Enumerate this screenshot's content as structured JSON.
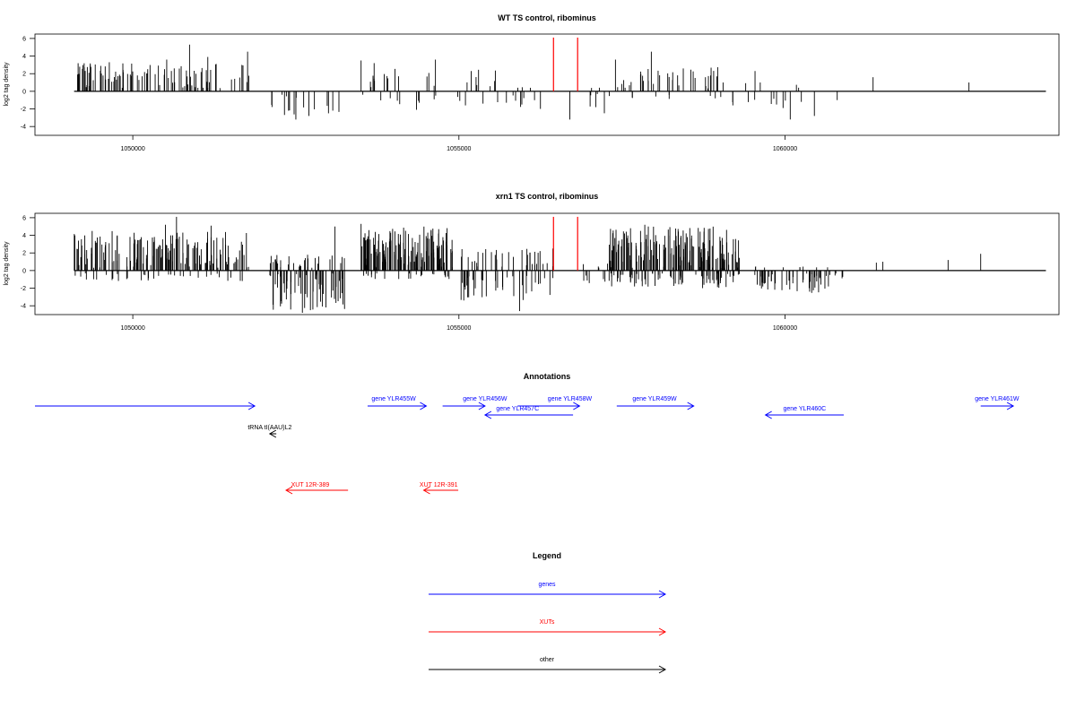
{
  "chart_data": [
    {
      "type": "bar",
      "title": "WT TS control, ribominus",
      "ylabel": "log2 tag density",
      "ylim": [
        -5,
        6.5
      ],
      "xlim": [
        1048500,
        1064200
      ],
      "yticks": [
        -4,
        -2,
        0,
        2,
        4,
        6
      ],
      "ytick_labels": [
        "-4",
        "-2",
        "0",
        "2",
        "4",
        "6"
      ],
      "xticks": [
        1050000,
        1055000,
        1060000
      ],
      "xtick_labels": [
        "1050000",
        "1055000",
        "1060000"
      ],
      "markers": [
        1056450,
        1056820
      ],
      "marker_color": "#ff0000",
      "bar_color": "#000000",
      "baseline_range": [
        1049100,
        1064000
      ],
      "dense_regions": [
        {
          "from": 1049100,
          "to": 1051800,
          "count": 95,
          "pos_max": 3.2,
          "neg_max": 0,
          "seed": 11
        },
        {
          "from": 1052000,
          "to": 1053200,
          "count": 14,
          "pos_max": 0,
          "neg_max": 2.8,
          "seed": 12
        },
        {
          "from": 1053300,
          "to": 1055600,
          "count": 34,
          "pos_max": 2.6,
          "neg_max": 1.5,
          "seed": 13
        },
        {
          "from": 1055700,
          "to": 1056400,
          "count": 10,
          "pos_max": 0.8,
          "neg_max": 2.2,
          "seed": 14
        },
        {
          "from": 1056900,
          "to": 1057400,
          "count": 6,
          "pos_max": 0.5,
          "neg_max": 2.0,
          "seed": 15
        },
        {
          "from": 1057400,
          "to": 1059000,
          "count": 40,
          "pos_max": 2.8,
          "neg_max": 1.0,
          "seed": 16
        },
        {
          "from": 1059000,
          "to": 1060800,
          "count": 10,
          "pos_max": 1.0,
          "neg_max": 2.3,
          "seed": 17
        }
      ],
      "bars": [
        {
          "x": 1050870,
          "y": 5.3
        },
        {
          "x": 1049640,
          "y": 3.3
        },
        {
          "x": 1050520,
          "y": 3.6
        },
        {
          "x": 1051760,
          "y": 4.5
        },
        {
          "x": 1051150,
          "y": 3.9
        },
        {
          "x": 1053500,
          "y": 3.5
        },
        {
          "x": 1053700,
          "y": 3.2
        },
        {
          "x": 1054640,
          "y": 3.6
        },
        {
          "x": 1052500,
          "y": -3.2
        },
        {
          "x": 1052700,
          "y": -2.8
        },
        {
          "x": 1053000,
          "y": -2.5
        },
        {
          "x": 1055100,
          "y": -1.6
        },
        {
          "x": 1054350,
          "y": -2.1
        },
        {
          "x": 1056250,
          "y": -2.0
        },
        {
          "x": 1056700,
          "y": -3.2
        },
        {
          "x": 1057100,
          "y": -1.8
        },
        {
          "x": 1057230,
          "y": -2.5
        },
        {
          "x": 1057400,
          "y": 3.6
        },
        {
          "x": 1057950,
          "y": 4.5
        },
        {
          "x": 1058440,
          "y": 2.6
        },
        {
          "x": 1058780,
          "y": 1.6
        },
        {
          "x": 1059050,
          "y": 1.0
        },
        {
          "x": 1059200,
          "y": -1.6
        },
        {
          "x": 1059540,
          "y": 2.3
        },
        {
          "x": 1059620,
          "y": 1.0
        },
        {
          "x": 1059870,
          "y": -1.5
        },
        {
          "x": 1059970,
          "y": -1.9
        },
        {
          "x": 1060080,
          "y": -3.2
        },
        {
          "x": 1060450,
          "y": -2.8
        },
        {
          "x": 1060250,
          "y": -1.2
        },
        {
          "x": 1060800,
          "y": -1.0
        },
        {
          "x": 1061350,
          "y": 1.6
        },
        {
          "x": 1062820,
          "y": 1.0
        }
      ]
    },
    {
      "type": "bar",
      "title": "xrn1 TS control, ribominus",
      "ylabel": "log2 tag density",
      "ylim": [
        -5,
        6.5
      ],
      "xlim": [
        1048500,
        1064200
      ],
      "yticks": [
        -4,
        -2,
        0,
        2,
        4,
        6
      ],
      "ytick_labels": [
        "-4",
        "-2",
        "0",
        "2",
        "4",
        "6"
      ],
      "xticks": [
        1050000,
        1055000,
        1060000
      ],
      "xtick_labels": [
        "1050000",
        "1055000",
        "1060000"
      ],
      "markers": [
        1056450,
        1056820
      ],
      "marker_color": "#ff0000",
      "bar_color": "#000000",
      "baseline_range": [
        1049100,
        1064000
      ],
      "dense_regions": [
        {
          "from": 1049100,
          "to": 1051800,
          "count": 190,
          "pos_max": 4.5,
          "neg_max": 1.2,
          "seed": 21
        },
        {
          "from": 1052100,
          "to": 1053300,
          "count": 90,
          "pos_max": 1.8,
          "neg_max": 4.5,
          "seed": 22
        },
        {
          "from": 1053500,
          "to": 1054900,
          "count": 170,
          "pos_max": 5.0,
          "neg_max": 1.0,
          "seed": 23
        },
        {
          "from": 1055000,
          "to": 1056500,
          "count": 70,
          "pos_max": 2.5,
          "neg_max": 3.5,
          "seed": 24
        },
        {
          "from": 1056900,
          "to": 1057300,
          "count": 10,
          "pos_max": 0.8,
          "neg_max": 1.5,
          "seed": 25
        },
        {
          "from": 1057300,
          "to": 1059300,
          "count": 240,
          "pos_max": 5.0,
          "neg_max": 2.0,
          "seed": 26
        },
        {
          "from": 1059500,
          "to": 1060900,
          "count": 60,
          "pos_max": 0.5,
          "neg_max": 2.7,
          "seed": 27
        }
      ],
      "bars": [
        {
          "x": 1050670,
          "y": 6.1
        },
        {
          "x": 1050500,
          "y": 5.2
        },
        {
          "x": 1051200,
          "y": 5.1
        },
        {
          "x": 1053500,
          "y": 5.3
        },
        {
          "x": 1053100,
          "y": 5.0
        },
        {
          "x": 1052600,
          "y": -4.8
        },
        {
          "x": 1055930,
          "y": -4.6
        },
        {
          "x": 1057850,
          "y": 5.2
        },
        {
          "x": 1061400,
          "y": 0.9
        },
        {
          "x": 1061500,
          "y": 1.0
        },
        {
          "x": 1062500,
          "y": 1.2
        },
        {
          "x": 1063000,
          "y": 1.9
        }
      ]
    }
  ],
  "annotations": {
    "title": "Annotations",
    "xlim": [
      1048500,
      1064200
    ],
    "features": [
      {
        "label": "",
        "from": 1048500,
        "to": 1051870,
        "strand": "+",
        "row": 0,
        "color": "#0000ff",
        "label_x": null
      },
      {
        "label": "gene YLR455W",
        "from": 1053600,
        "to": 1054500,
        "strand": "+",
        "row": 0,
        "color": "#0000ff",
        "label_x": 1054000
      },
      {
        "label": "gene YLR456W",
        "from": 1054750,
        "to": 1055400,
        "strand": "+",
        "row": 0,
        "color": "#0000ff",
        "label_x": 1055400
      },
      {
        "label": "gene YLR458W",
        "from": 1055900,
        "to": 1056850,
        "strand": "+",
        "row": 0,
        "color": "#0000ff",
        "label_x": 1056700
      },
      {
        "label": "gene YLR459W",
        "from": 1057420,
        "to": 1058600,
        "strand": "+",
        "row": 0,
        "color": "#0000ff",
        "label_x": 1058000
      },
      {
        "label": "gene YLR457C",
        "from": 1055400,
        "to": 1056750,
        "strand": "-",
        "row": 1,
        "color": "#0000ff",
        "label_x": 1055900
      },
      {
        "label": "gene YLR460C",
        "from": 1059700,
        "to": 1060900,
        "strand": "-",
        "row": 1,
        "color": "#0000ff",
        "label_x": 1060300
      },
      {
        "label": "gene YLR461W",
        "from": 1063000,
        "to": 1063500,
        "strand": "+",
        "row": 0,
        "color": "#0000ff",
        "label_x": 1063250
      },
      {
        "label": "tRNA tI(AAU)L2",
        "from": 1052100,
        "to": 1052200,
        "strand": "-",
        "row": 2,
        "color": "#000000",
        "label_x": 1052100
      },
      {
        "label": "XUT 12R-389",
        "from": 1052350,
        "to": 1053300,
        "strand": "-",
        "row": 3,
        "color": "#ff0000",
        "label_x": 1052720
      },
      {
        "label": "XUT 12R-391",
        "from": 1054460,
        "to": 1054990,
        "strand": "-",
        "row": 3,
        "color": "#ff0000",
        "label_x": 1054690
      }
    ]
  },
  "legend": {
    "title": "Legend",
    "items": [
      {
        "label": "genes",
        "color": "#0000ff"
      },
      {
        "label": "XUTs",
        "color": "#ff0000"
      },
      {
        "label": "other",
        "color": "#000000"
      }
    ]
  }
}
